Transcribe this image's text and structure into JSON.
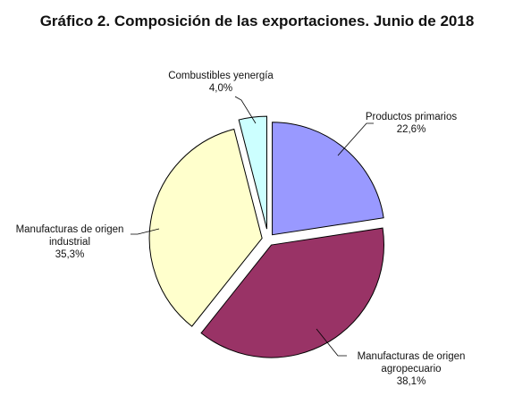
{
  "chart_data": {
    "type": "pie",
    "title": "Gráfico 2. Composición de las exportaciones. Junio de 2018",
    "categories": [
      "Productos primarios",
      "Manufacturas de origen agropecuario",
      "Manufacturas de origen industrial",
      "Combustibles yenergía"
    ],
    "values": [
      22.6,
      38.1,
      35.3,
      4.0
    ],
    "value_labels": [
      "22,6%",
      "38,1%",
      "35,3%",
      "4,0%"
    ],
    "label_lines": [
      [
        "Productos primarios",
        "22,6%"
      ],
      [
        "Manufacturas de origen",
        "agropecuario",
        "38,1%"
      ],
      [
        "Manufacturas de origen",
        "industrial",
        "35,3%"
      ],
      [
        "Combustibles yenergía",
        "4,0%"
      ]
    ],
    "colors": [
      "#9999ff",
      "#993366",
      "#ffffcc",
      "#ccffff"
    ],
    "exploded": true,
    "legend": "none"
  }
}
